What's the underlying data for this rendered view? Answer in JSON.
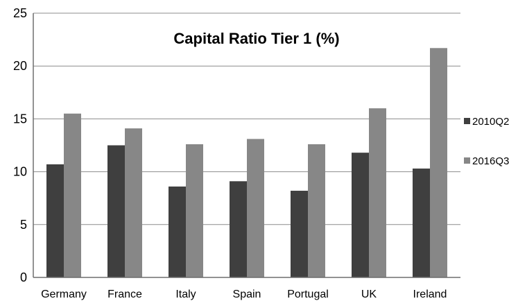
{
  "chart_data": {
    "type": "bar",
    "title": "Capital Ratio Tier 1 (%)",
    "xlabel": "",
    "ylabel": "",
    "categories": [
      "Germany",
      "France",
      "Italy",
      "Spain",
      "Portugal",
      "UK",
      "Ireland"
    ],
    "series": [
      {
        "name": "2010Q2",
        "color": "#3f3f3f",
        "values": [
          10.7,
          12.5,
          8.6,
          9.1,
          8.2,
          11.8,
          10.3
        ]
      },
      {
        "name": "2016Q3",
        "color": "#878787",
        "values": [
          15.5,
          14.1,
          12.6,
          13.1,
          12.6,
          16.0,
          21.7
        ]
      }
    ],
    "ylim": [
      0,
      25
    ],
    "yticks": [
      0,
      5,
      10,
      15,
      20,
      25
    ],
    "ytick_labels": [
      "0",
      "5",
      "10",
      "15",
      "20",
      "25"
    ],
    "grid": true,
    "legend_position": "right"
  }
}
